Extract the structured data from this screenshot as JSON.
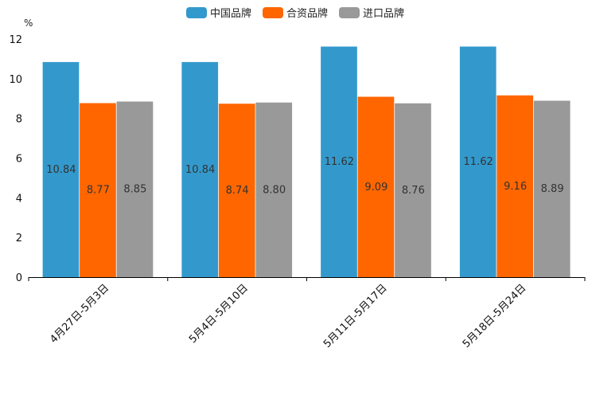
{
  "chart_data": {
    "type": "bar",
    "unit": "%",
    "categories": [
      "4月27日-5月3日",
      "5月4日-5月10日",
      "5月11日-5月17日",
      "5月18日-5月24日"
    ],
    "series": [
      {
        "name": "中国品牌",
        "color": "#3399cc",
        "values": [
          10.84,
          10.84,
          11.62,
          11.62
        ],
        "labels": [
          "10.84",
          "10.84",
          "11.62",
          "11.62"
        ]
      },
      {
        "name": "合资品牌",
        "color": "#ff6600",
        "values": [
          8.77,
          8.74,
          9.09,
          9.16
        ],
        "labels": [
          "8.77",
          "8.74",
          "9.09",
          "9.16"
        ]
      },
      {
        "name": "进口品牌",
        "color": "#999999",
        "values": [
          8.85,
          8.8,
          8.76,
          8.89
        ],
        "labels": [
          "8.85",
          "8.80",
          "8.76",
          "8.89"
        ]
      }
    ],
    "ylim": [
      0,
      12
    ],
    "yticks": [
      "0",
      "2",
      "4",
      "6",
      "8",
      "10",
      "12"
    ],
    "legend_position": "top-center"
  }
}
